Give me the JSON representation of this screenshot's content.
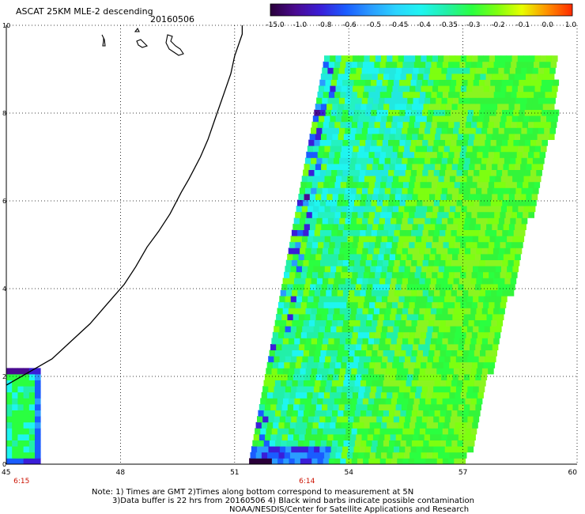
{
  "title": "ASCAT 25KM MLE-2 descending",
  "date": "20160506",
  "notes": [
    "Note: 1) Times are GMT 2)Times along bottom correspond to measurement at 5N",
    "3)Data buffer is 22 hrs from 20160506 4) Black wind barbs indicate possible contamination",
    "NOAA/NESDIS/Center for Satellite Applications and Research"
  ],
  "colorbar": {
    "labels": [
      "-15.0",
      "-1.0",
      "-0.8",
      "-0.6",
      "-0.5",
      "-0.45",
      "-0.4",
      "-0.35",
      "-0.3",
      "-0.2",
      "-0.1",
      "0.0",
      "1.0"
    ],
    "colors": [
      "#2a003a",
      "#4a0a90",
      "#3a1ed8",
      "#1a5cff",
      "#2a9cff",
      "#2ad4ff",
      "#1ff5f0",
      "#22f0a8",
      "#2aff40",
      "#7dff10",
      "#e8ff00",
      "#ff9000",
      "#ff2a00"
    ]
  },
  "chart_data": {
    "type": "heatmap",
    "x_ticks": [
      "45",
      "48",
      "51",
      "54",
      "57",
      "60"
    ],
    "y_ticks": [
      "0",
      "2",
      "4",
      "6",
      "8",
      "10"
    ],
    "xlim": [
      45,
      60
    ],
    "ylim": [
      0,
      10
    ],
    "grid": true,
    "time_labels": [
      {
        "text": "6:15",
        "x": 45.4
      },
      {
        "text": "6:14",
        "x": 52.9
      }
    ],
    "coastline": [
      [
        45,
        1.8
      ],
      [
        45.6,
        2.1
      ],
      [
        46.2,
        2.4
      ],
      [
        46.7,
        2.8
      ],
      [
        47.2,
        3.2
      ],
      [
        47.7,
        3.7
      ],
      [
        48.1,
        4.1
      ],
      [
        48.4,
        4.5
      ],
      [
        48.7,
        4.95
      ],
      [
        49.0,
        5.3
      ],
      [
        49.3,
        5.7
      ],
      [
        49.6,
        6.2
      ],
      [
        49.8,
        6.5
      ],
      [
        50.1,
        7.0
      ],
      [
        50.3,
        7.4
      ],
      [
        50.5,
        7.9
      ],
      [
        50.7,
        8.4
      ],
      [
        50.9,
        8.9
      ],
      [
        51.0,
        9.3
      ],
      [
        51.2,
        9.8
      ],
      [
        51.2,
        10.0
      ]
    ],
    "swaths": [
      {
        "name": "west",
        "x0": 45.0,
        "x1": 45.8,
        "y_bottom": 0.0,
        "y_top": 2.3
      },
      {
        "name": "east",
        "bottom_left": 51.35,
        "bottom_right": 57.0,
        "top_left": 53.5,
        "top_right": 60.0
      }
    ]
  }
}
